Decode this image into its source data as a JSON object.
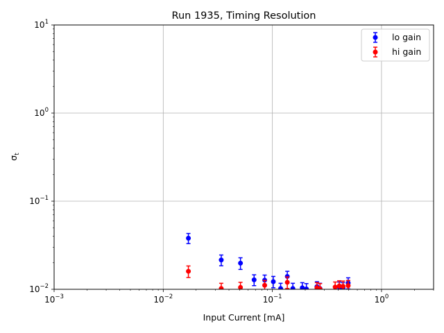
{
  "chart_data": {
    "type": "scatter",
    "title": "Run 1935, Timing Resolution",
    "xlabel": "Input Current [mA]",
    "ylabel": "σ_t",
    "xscale": "log",
    "yscale": "log",
    "xlim": [
      0.001,
      3
    ],
    "ylim": [
      0.01,
      10
    ],
    "grid": true,
    "legend_position": "top-right",
    "x_ticks": [
      {
        "value": 0.001,
        "base": "10",
        "exp": "−3"
      },
      {
        "value": 0.01,
        "base": "10",
        "exp": "−2"
      },
      {
        "value": 0.1,
        "base": "10",
        "exp": "−1"
      },
      {
        "value": 1,
        "base": "10",
        "exp": "0"
      }
    ],
    "y_ticks": [
      {
        "value": 0.01,
        "base": "10",
        "exp": "−2"
      },
      {
        "value": 0.1,
        "base": "10",
        "exp": "−1"
      },
      {
        "value": 1,
        "base": "10",
        "exp": "0"
      },
      {
        "value": 10,
        "base": "10",
        "exp": "1"
      }
    ],
    "series": [
      {
        "name": "lo gain",
        "color": "#0000ff",
        "points": [
          {
            "x": 0.017,
            "y": 0.038,
            "err": 0.005
          },
          {
            "x": 0.034,
            "y": 0.0215,
            "err": 0.003
          },
          {
            "x": 0.051,
            "y": 0.0198,
            "err": 0.003
          },
          {
            "x": 0.068,
            "y": 0.0128,
            "err": 0.0018
          },
          {
            "x": 0.085,
            "y": 0.0127,
            "err": 0.0018
          },
          {
            "x": 0.102,
            "y": 0.0122,
            "err": 0.0018
          },
          {
            "x": 0.119,
            "y": 0.0102,
            "err": 0.0015
          },
          {
            "x": 0.137,
            "y": 0.014,
            "err": 0.002
          },
          {
            "x": 0.154,
            "y": 0.0102,
            "err": 0.0015
          },
          {
            "x": 0.188,
            "y": 0.0104,
            "err": 0.0015
          },
          {
            "x": 0.205,
            "y": 0.0101,
            "err": 0.0015
          },
          {
            "x": 0.256,
            "y": 0.0107,
            "err": 0.0015
          },
          {
            "x": 0.273,
            "y": 0.0102,
            "err": 0.0015
          },
          {
            "x": 0.41,
            "y": 0.0106,
            "err": 0.0015
          },
          {
            "x": 0.444,
            "y": 0.0104,
            "err": 0.0015
          },
          {
            "x": 0.495,
            "y": 0.0118,
            "err": 0.0017
          }
        ]
      },
      {
        "name": "hi gain",
        "color": "#ff0000",
        "points": [
          {
            "x": 0.017,
            "y": 0.016,
            "err": 0.0024
          },
          {
            "x": 0.034,
            "y": 0.0102,
            "err": 0.0015
          },
          {
            "x": 0.051,
            "y": 0.0105,
            "err": 0.0015
          },
          {
            "x": 0.085,
            "y": 0.0111,
            "err": 0.0015
          },
          {
            "x": 0.137,
            "y": 0.012,
            "err": 0.0018
          },
          {
            "x": 0.256,
            "y": 0.0104,
            "err": 0.0015
          },
          {
            "x": 0.273,
            "y": 0.0101,
            "err": 0.0015
          },
          {
            "x": 0.376,
            "y": 0.0106,
            "err": 0.0015
          },
          {
            "x": 0.41,
            "y": 0.0109,
            "err": 0.0016
          },
          {
            "x": 0.444,
            "y": 0.0108,
            "err": 0.0016
          },
          {
            "x": 0.495,
            "y": 0.011,
            "err": 0.0016
          }
        ]
      }
    ]
  }
}
